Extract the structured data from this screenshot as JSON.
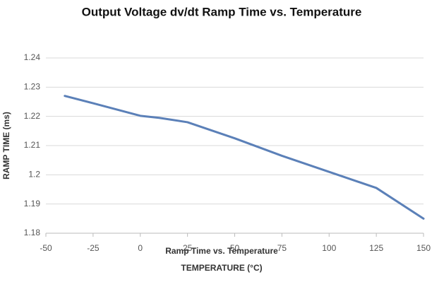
{
  "chart_data": {
    "type": "line",
    "title": "Output Voltage dv/dt Ramp Time vs. Temperature",
    "caption": "Ramp Time vs. Temperature",
    "x_label": "TEMPERATURE (°C)",
    "y_label": "RAMP TIME (ms)",
    "x": [
      -40,
      -25,
      0,
      10,
      25,
      50,
      75,
      100,
      125,
      150
    ],
    "series": [
      {
        "name": "Ramp Time",
        "color": "#5b80b8",
        "values": [
          1.227,
          1.2245,
          1.2202,
          1.2195,
          1.218,
          1.2125,
          1.2065,
          1.201,
          1.1955,
          1.185
        ]
      }
    ],
    "xlim": [
      -50,
      150
    ],
    "xticks": [
      -50,
      -25,
      0,
      25,
      50,
      75,
      100,
      125,
      150
    ],
    "ylim": [
      1.18,
      1.24
    ],
    "yticks": [
      1.18,
      1.19,
      1.2,
      1.21,
      1.22,
      1.23,
      1.24
    ],
    "grid": true
  }
}
